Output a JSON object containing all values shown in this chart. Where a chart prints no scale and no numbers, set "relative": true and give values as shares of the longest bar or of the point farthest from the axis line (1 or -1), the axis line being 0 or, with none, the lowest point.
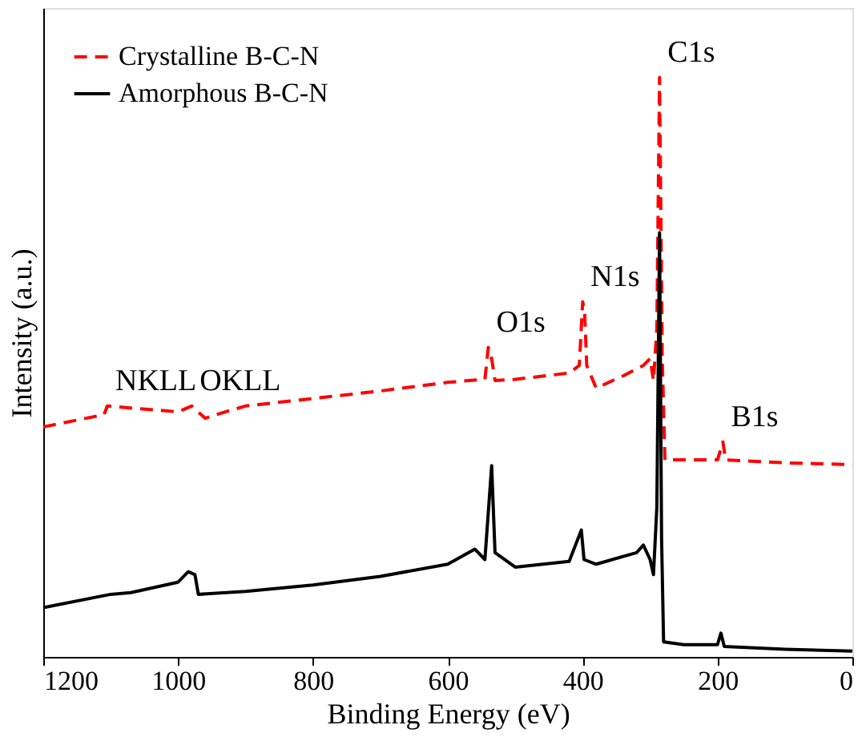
{
  "chart_data": {
    "type": "line",
    "relative": true,
    "xlabel": "Binding Energy (eV)",
    "ylabel": "Intensity (a.u.)",
    "xlim": [
      1200,
      0
    ],
    "xticks": [
      1200,
      1000,
      800,
      600,
      400,
      200,
      0
    ],
    "legend": "top left",
    "grid": false,
    "series": [
      {
        "name": "Crystalline B-C-N",
        "color": "#ff0000",
        "line_style": "dashed",
        "x": [
          1200,
          1110,
          1105,
          1000,
          980,
          960,
          930,
          900,
          800,
          700,
          600,
          545,
          540,
          535,
          530,
          500,
          420,
          405,
          400,
          397,
          394,
          380,
          340,
          310,
          300,
          295,
          290,
          286,
          282,
          278,
          250,
          200,
          192,
          188,
          100,
          0
        ],
        "values": [
          0.397,
          0.418,
          0.433,
          0.423,
          0.433,
          0.412,
          0.423,
          0.433,
          0.446,
          0.459,
          0.474,
          0.479,
          0.534,
          0.515,
          0.477,
          0.479,
          0.49,
          0.503,
          0.613,
          0.593,
          0.503,
          0.464,
          0.485,
          0.503,
          0.515,
          0.477,
          0.567,
          1.0,
          0.515,
          0.34,
          0.34,
          0.34,
          0.371,
          0.34,
          0.335,
          0.332
        ]
      },
      {
        "name": "Amorphous B-C-N",
        "color": "#000000",
        "line_style": "solid",
        "x": [
          1200,
          1100,
          1070,
          1000,
          985,
          975,
          970,
          900,
          800,
          700,
          600,
          560,
          545,
          535,
          530,
          500,
          420,
          402,
          398,
          380,
          320,
          310,
          300,
          295,
          290,
          286,
          283,
          280,
          250,
          200,
          195,
          190,
          100,
          0
        ],
        "values": [
          0.085,
          0.108,
          0.111,
          0.129,
          0.147,
          0.142,
          0.108,
          0.113,
          0.124,
          0.139,
          0.16,
          0.186,
          0.168,
          0.33,
          0.18,
          0.155,
          0.165,
          0.219,
          0.168,
          0.16,
          0.18,
          0.193,
          0.168,
          0.142,
          0.258,
          0.732,
          0.206,
          0.026,
          0.021,
          0.021,
          0.041,
          0.018,
          0.013,
          0.01
        ]
      }
    ],
    "annotations": [
      {
        "text": "NKLL",
        "x": 1105,
        "y": 0.433
      },
      {
        "text": "OKLL",
        "x": 980,
        "y": 0.433
      },
      {
        "text": "O1s",
        "x": 540,
        "y": 0.534
      },
      {
        "text": "N1s",
        "x": 400,
        "y": 0.613
      },
      {
        "text": "C1s",
        "x": 286,
        "y": 1.0
      },
      {
        "text": "B1s",
        "x": 192,
        "y": 0.371
      }
    ]
  }
}
